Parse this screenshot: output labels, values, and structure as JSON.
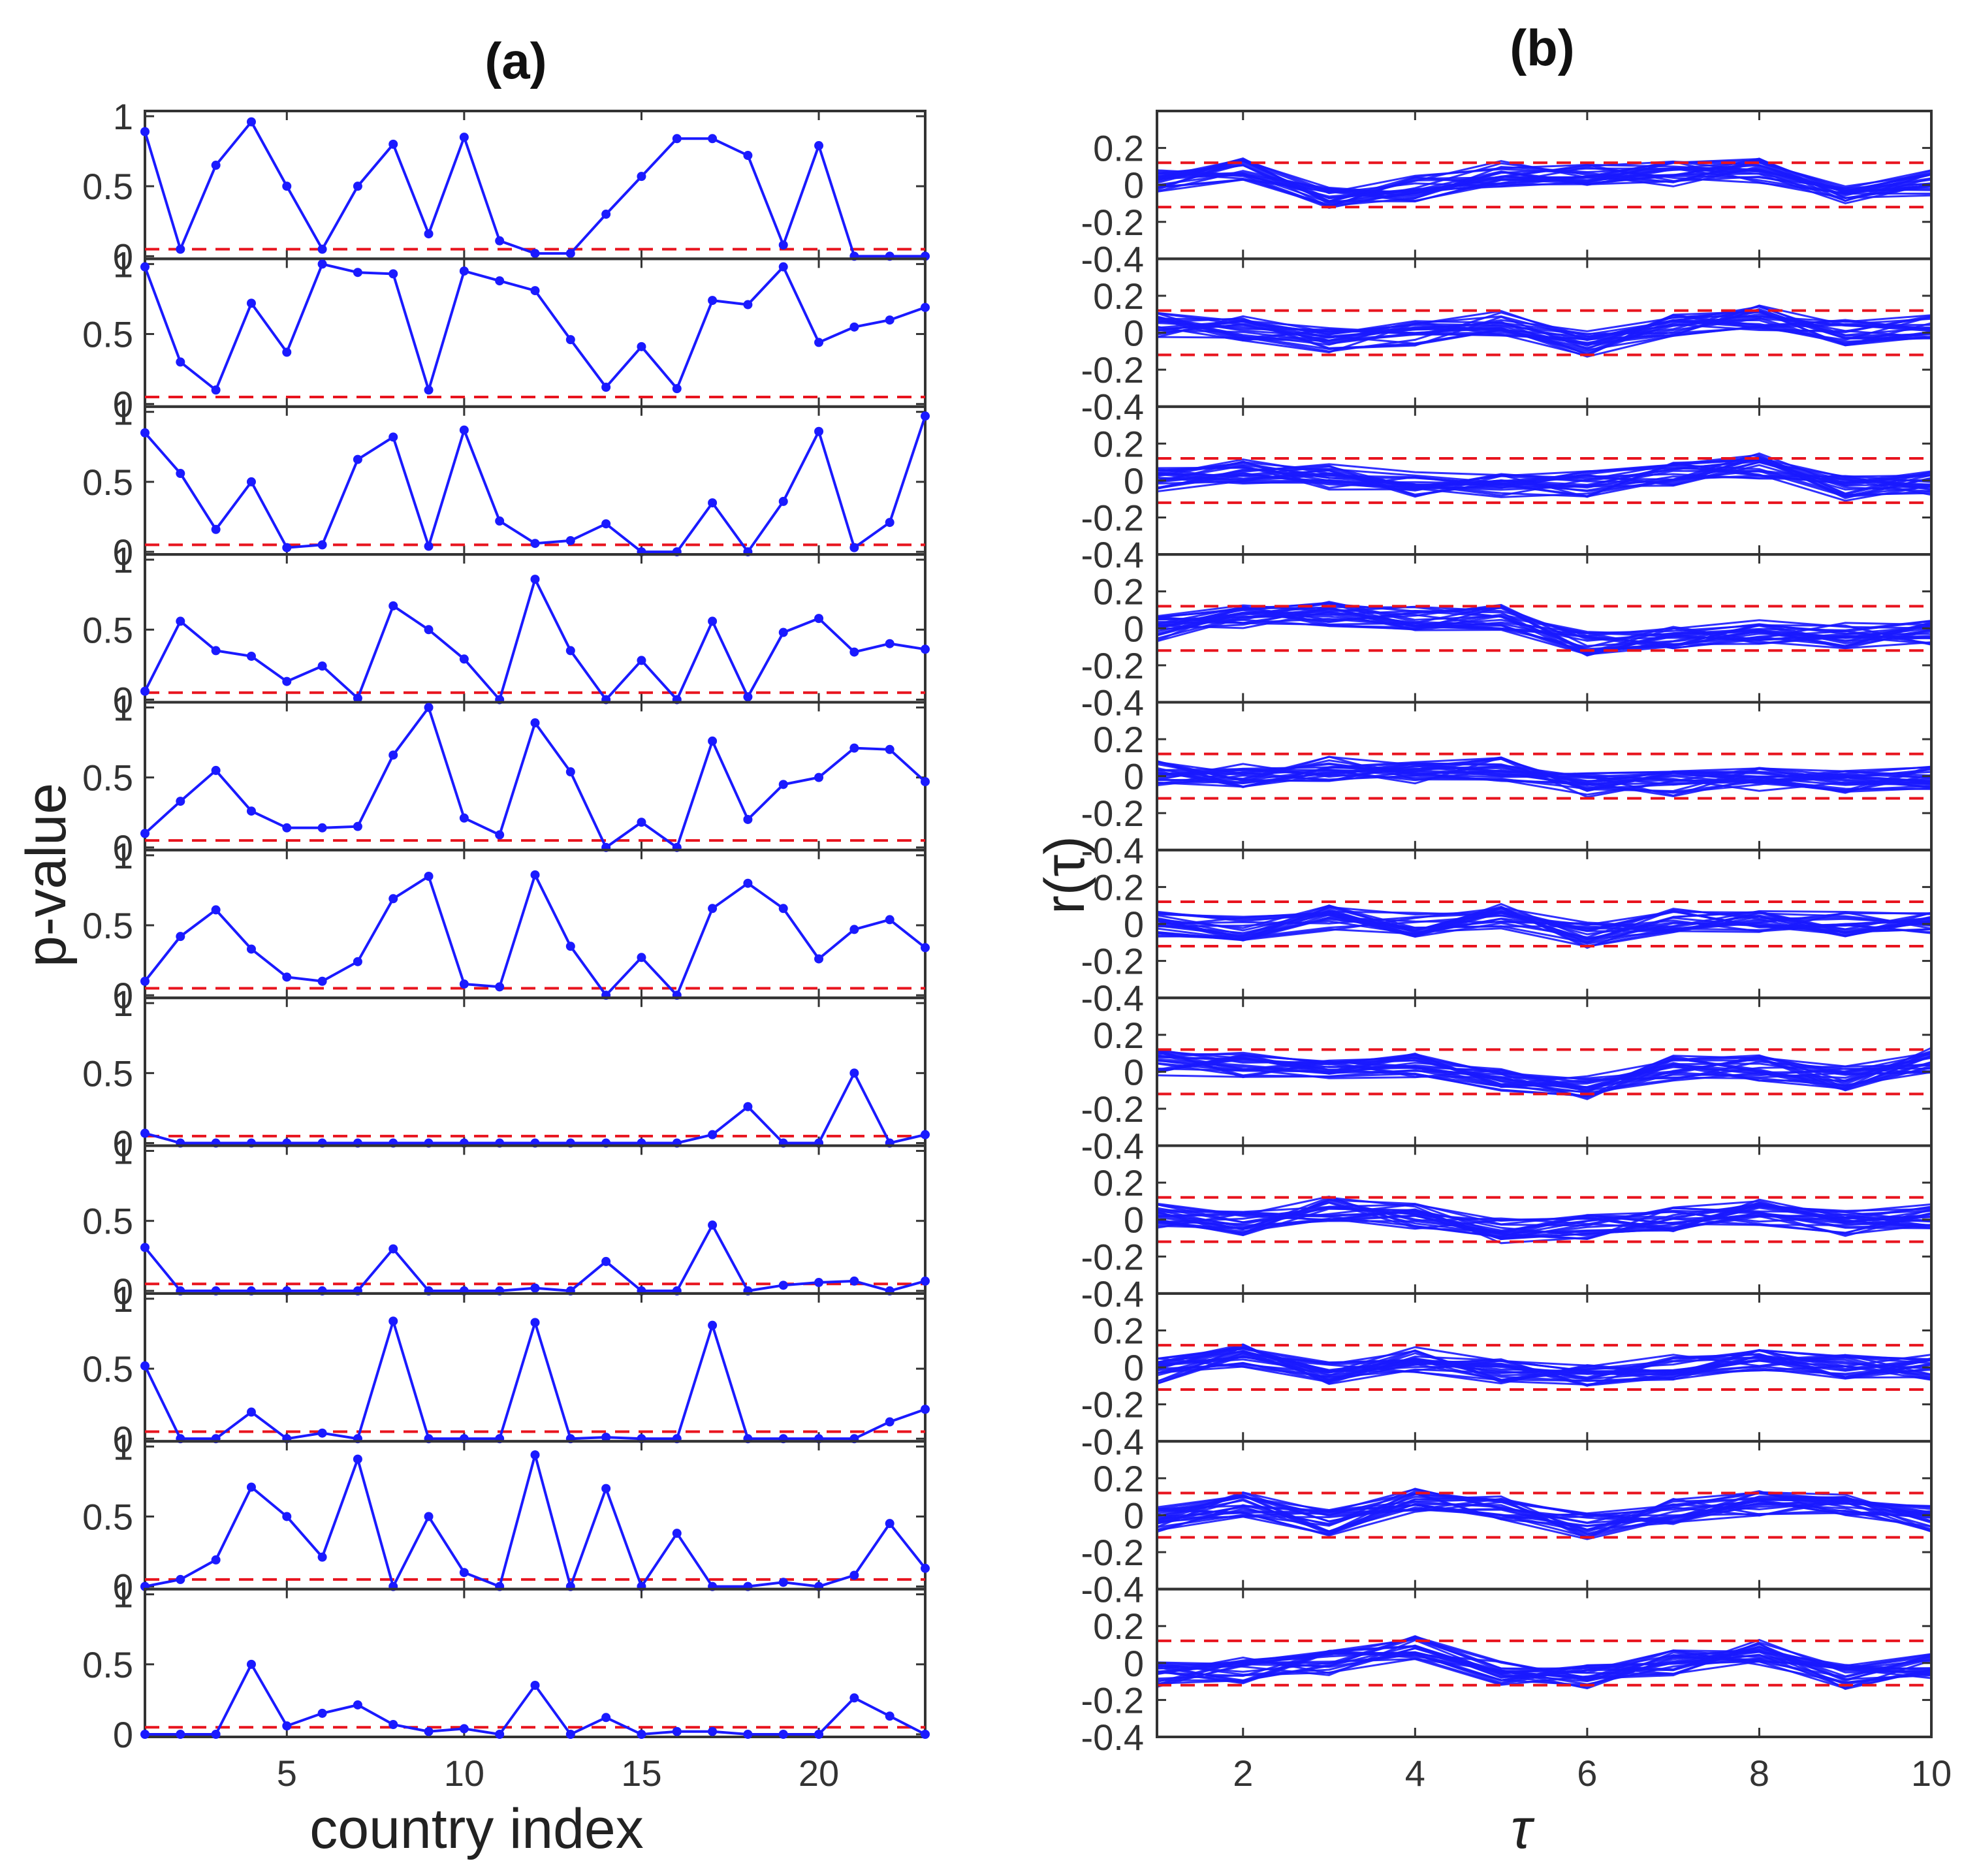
{
  "colors": {
    "series": "#1a1aff",
    "threshold": "#e8141e",
    "axis": "#333333",
    "text": "#333333",
    "title": "#111111"
  },
  "chart_data": [
    {
      "panel": "a",
      "type": "line",
      "title": "(a)",
      "xlabel": "country index",
      "ylabel": "p-value",
      "xlim": [
        1,
        23
      ],
      "ylim": [
        0,
        1
      ],
      "xticks": [
        5,
        10,
        15,
        20
      ],
      "yticks": [
        0,
        0.5,
        1
      ],
      "ytick_labels": [
        "0",
        "0.5",
        "1"
      ],
      "threshold": 0.05,
      "x": [
        1,
        2,
        3,
        4,
        5,
        6,
        7,
        8,
        9,
        10,
        11,
        12,
        13,
        14,
        15,
        16,
        17,
        18,
        19,
        20,
        21,
        22,
        23
      ],
      "series": [
        {
          "name": "row 1",
          "values": [
            0.89,
            0.05,
            0.65,
            0.96,
            0.5,
            0.05,
            0.5,
            0.8,
            0.16,
            0.85,
            0.11,
            0.02,
            0.02,
            0.3,
            0.57,
            0.84,
            0.84,
            0.72,
            0.08,
            0.79,
            0.0,
            0.0,
            0.0
          ]
        },
        {
          "name": "row 2",
          "values": [
            0.98,
            0.3,
            0.1,
            0.72,
            0.37,
            1.0,
            0.94,
            0.93,
            0.1,
            0.95,
            0.88,
            0.81,
            0.46,
            0.12,
            0.41,
            0.11,
            0.74,
            0.71,
            0.98,
            0.44,
            0.55,
            0.6,
            0.69
          ]
        },
        {
          "name": "row 3",
          "values": [
            0.85,
            0.56,
            0.16,
            0.5,
            0.03,
            0.05,
            0.66,
            0.82,
            0.04,
            0.87,
            0.22,
            0.06,
            0.08,
            0.2,
            0.0,
            0.0,
            0.35,
            0.0,
            0.36,
            0.86,
            0.03,
            0.21,
            0.97
          ]
        },
        {
          "name": "row 4",
          "values": [
            0.06,
            0.56,
            0.35,
            0.31,
            0.13,
            0.24,
            0.01,
            0.67,
            0.5,
            0.29,
            0.0,
            0.86,
            0.35,
            0.0,
            0.28,
            0.0,
            0.56,
            0.02,
            0.48,
            0.58,
            0.34,
            0.4,
            0.36
          ]
        },
        {
          "name": "row 5",
          "values": [
            0.1,
            0.33,
            0.55,
            0.26,
            0.14,
            0.14,
            0.15,
            0.66,
            1.0,
            0.21,
            0.09,
            0.89,
            0.54,
            0.0,
            0.18,
            0.0,
            0.76,
            0.2,
            0.45,
            0.5,
            0.71,
            0.7,
            0.47
          ]
        },
        {
          "name": "row 6",
          "values": [
            0.1,
            0.42,
            0.61,
            0.33,
            0.13,
            0.1,
            0.24,
            0.69,
            0.85,
            0.08,
            0.06,
            0.86,
            0.35,
            0.0,
            0.27,
            0.0,
            0.62,
            0.8,
            0.62,
            0.26,
            0.47,
            0.54,
            0.34
          ]
        },
        {
          "name": "row 7",
          "values": [
            0.07,
            0.0,
            0.0,
            0.0,
            0.0,
            0.0,
            0.0,
            0.0,
            0.0,
            0.0,
            0.0,
            0.0,
            0.0,
            0.0,
            0.0,
            0.0,
            0.06,
            0.26,
            0.0,
            0.0,
            0.5,
            0.0,
            0.06
          ]
        },
        {
          "name": "row 8",
          "values": [
            0.31,
            0.0,
            0.0,
            0.0,
            0.0,
            0.0,
            0.0,
            0.3,
            0.0,
            0.0,
            0.0,
            0.02,
            0.0,
            0.21,
            0.0,
            0.0,
            0.47,
            0.0,
            0.04,
            0.06,
            0.07,
            0.0,
            0.07
          ]
        },
        {
          "name": "row 9",
          "values": [
            0.52,
            0.0,
            0.0,
            0.19,
            0.0,
            0.04,
            0.0,
            0.84,
            0.0,
            0.0,
            0.0,
            0.83,
            0.0,
            0.01,
            0.0,
            0.0,
            0.81,
            0.0,
            0.0,
            0.0,
            0.0,
            0.12,
            0.21
          ]
        },
        {
          "name": "row 10",
          "values": [
            0.0,
            0.05,
            0.19,
            0.71,
            0.5,
            0.21,
            0.91,
            0.0,
            0.5,
            0.1,
            0.0,
            0.94,
            0.0,
            0.7,
            0.0,
            0.38,
            0.0,
            0.0,
            0.03,
            0.0,
            0.08,
            0.45,
            0.13
          ]
        },
        {
          "name": "row 11",
          "values": [
            0.0,
            0.0,
            0.0,
            0.5,
            0.06,
            0.15,
            0.21,
            0.07,
            0.02,
            0.04,
            0.0,
            0.35,
            0.0,
            0.12,
            0.0,
            0.02,
            0.02,
            0.0,
            0.0,
            0.0,
            0.26,
            0.13,
            0.0
          ]
        }
      ]
    },
    {
      "panel": "b",
      "type": "line",
      "title": "(b)",
      "xlabel": "τ",
      "ylabel": "r(τ)",
      "xlim": [
        1,
        10
      ],
      "ylim": [
        -0.4,
        0.4
      ],
      "xticks": [
        2,
        4,
        6,
        8,
        10
      ],
      "yticks": [
        -0.4,
        -0.2,
        0,
        0.2
      ],
      "ytick_labels": [
        "-0.4",
        "-0.2",
        "0",
        "0.2"
      ],
      "confidence_band": [
        -0.12,
        0.12
      ],
      "lines_per_panel": 23,
      "tau": [
        1,
        2,
        3,
        4,
        5,
        6,
        7,
        8,
        9,
        10
      ],
      "panels_mean_profile": [
        [
          0.02,
          0.08,
          -0.06,
          -0.02,
          0.06,
          0.04,
          0.06,
          0.08,
          -0.06,
          0.01
        ],
        [
          0.04,
          0.02,
          -0.04,
          0.0,
          0.05,
          -0.06,
          0.04,
          0.08,
          0.0,
          0.03
        ],
        [
          0.0,
          0.05,
          0.02,
          -0.02,
          -0.03,
          -0.02,
          0.03,
          0.08,
          -0.04,
          -0.01
        ],
        [
          0.0,
          0.06,
          0.08,
          0.06,
          0.06,
          -0.08,
          -0.04,
          -0.02,
          -0.04,
          -0.02
        ],
        [
          0.02,
          0.0,
          0.04,
          0.02,
          0.04,
          -0.05,
          -0.04,
          -0.02,
          -0.03,
          0.0
        ],
        [
          0.0,
          -0.02,
          0.03,
          0.0,
          0.04,
          -0.06,
          0.02,
          0.0,
          0.0,
          0.02
        ],
        [
          0.05,
          0.04,
          0.02,
          0.04,
          -0.05,
          -0.08,
          0.02,
          0.02,
          -0.04,
          0.06
        ],
        [
          0.02,
          -0.02,
          0.06,
          0.02,
          -0.06,
          -0.04,
          0.0,
          0.04,
          -0.02,
          0.02
        ],
        [
          -0.02,
          0.06,
          -0.02,
          0.04,
          -0.02,
          -0.04,
          0.0,
          0.04,
          0.0,
          0.0
        ],
        [
          -0.02,
          0.06,
          -0.04,
          0.08,
          0.04,
          -0.06,
          0.02,
          0.06,
          0.06,
          -0.02
        ],
        [
          -0.06,
          -0.04,
          0.0,
          0.08,
          -0.06,
          -0.08,
          0.0,
          0.06,
          -0.08,
          -0.02
        ]
      ]
    }
  ]
}
